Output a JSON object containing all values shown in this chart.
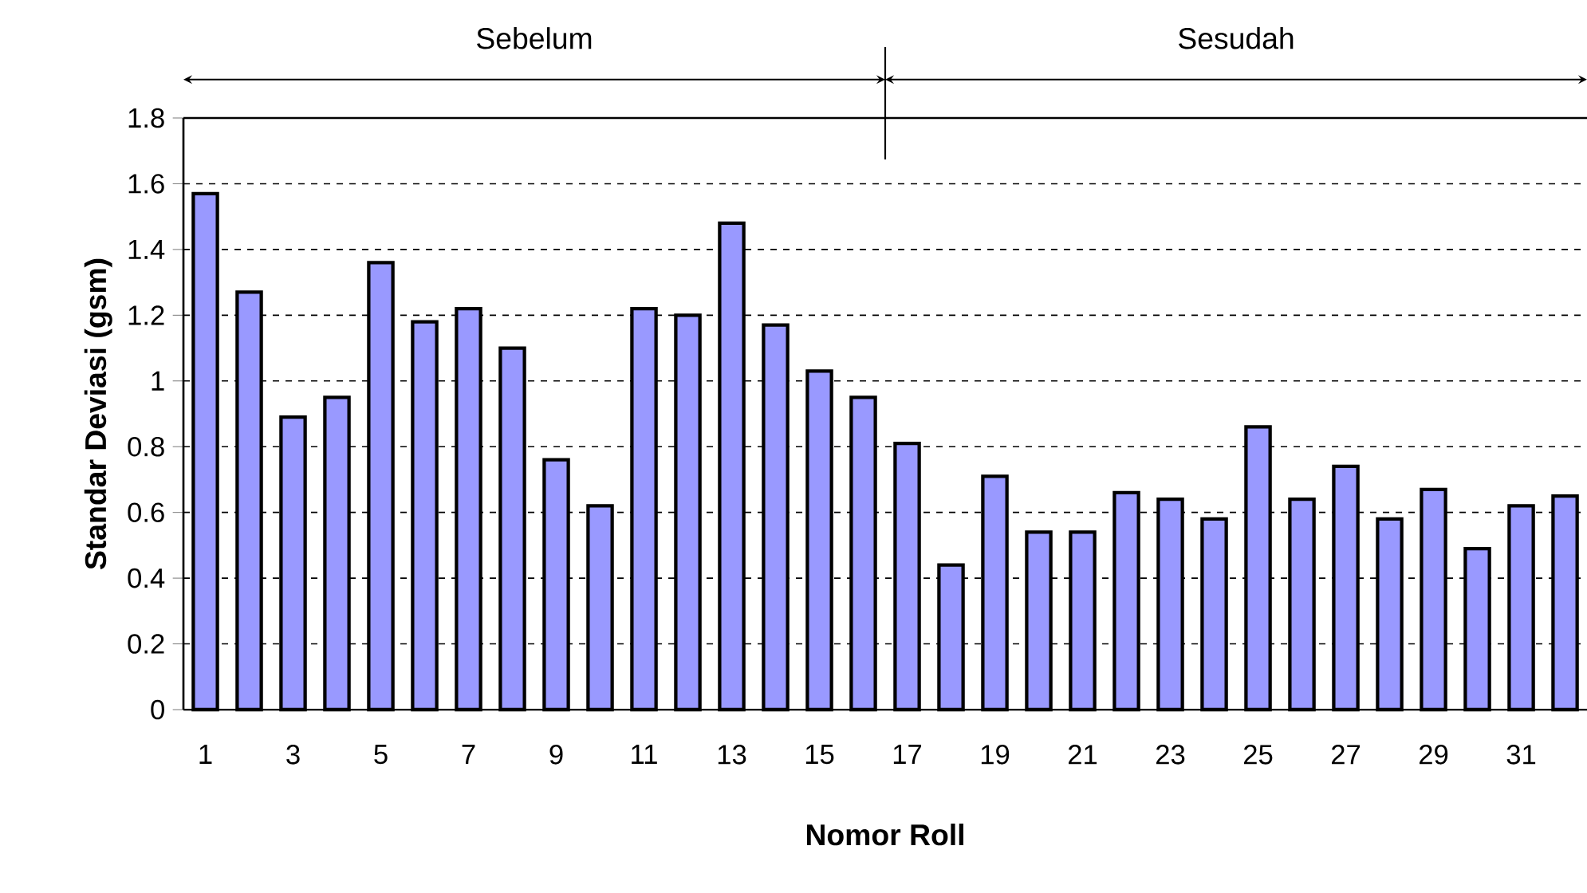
{
  "chart_data": {
    "type": "bar",
    "xlabel": "Nomor Roll",
    "ylabel": "Standar Deviasi (gsm)",
    "categories": [
      "1",
      null,
      "3",
      null,
      "5",
      null,
      "7",
      null,
      "9",
      null,
      "11",
      null,
      "13",
      null,
      "15",
      null,
      "17",
      null,
      "19",
      null,
      "21",
      null,
      "23",
      null,
      "25",
      null,
      "27",
      null,
      "29",
      null,
      "31",
      null
    ],
    "values": [
      1.57,
      1.27,
      0.89,
      0.95,
      1.36,
      1.18,
      1.22,
      1.1,
      0.76,
      0.62,
      1.22,
      1.2,
      1.48,
      1.17,
      1.03,
      0.95,
      0.81,
      0.44,
      0.71,
      0.54,
      0.54,
      0.66,
      0.64,
      0.58,
      0.86,
      0.64,
      0.74,
      0.58,
      0.67,
      0.49,
      0.62,
      0.65
    ],
    "color": "#9999ff",
    "ylim": [
      0,
      1.8
    ],
    "yticks": [
      0,
      0.2,
      0.4,
      0.6,
      0.8,
      1,
      1.2,
      1.4,
      1.6,
      1.8
    ],
    "grid": "y",
    "line_style": "dashed",
    "annotations": [
      "Sebelum",
      "Sesudah"
    ]
  }
}
